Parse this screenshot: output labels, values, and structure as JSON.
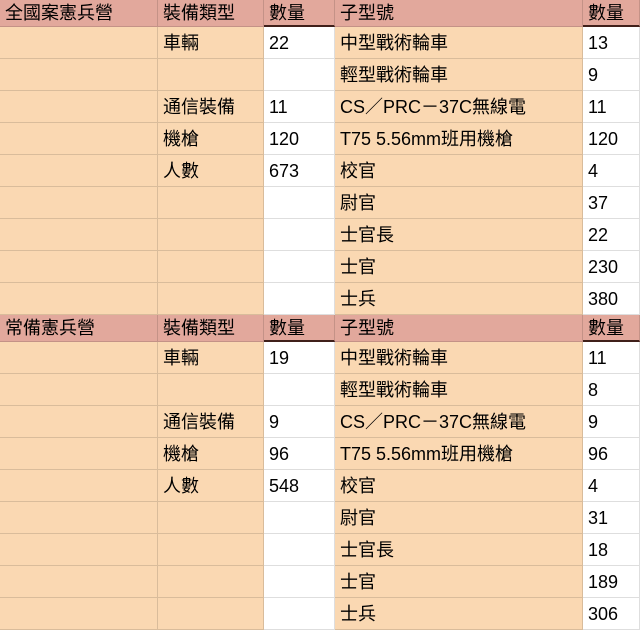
{
  "colors": {
    "header_bg": "#e2a89c",
    "cell_bg": "#fad8b2",
    "white_bg": "#ffffff",
    "grid_line": "rgba(0,0,0,0.13)",
    "qty_header_border": "#40201a",
    "text": "#000000"
  },
  "sections": [
    {
      "header": {
        "title": "全國案憲兵營",
        "equip_type": "裝備類型",
        "qty": "數量",
        "sub_model": "子型號",
        "sub_qty": "數量"
      },
      "rows": [
        {
          "category": "",
          "equip_type": "車輛",
          "qty": "22",
          "sub_model": "中型戰術輪車",
          "sub_qty": "13"
        },
        {
          "category": "",
          "equip_type": "",
          "qty": "",
          "sub_model": "輕型戰術輪車",
          "sub_qty": "9"
        },
        {
          "category": "",
          "equip_type": "通信裝備",
          "qty": "11",
          "sub_model": "CS／PRC－37C無線電",
          "sub_qty": "11"
        },
        {
          "category": "",
          "equip_type": "機槍",
          "qty": "120",
          "sub_model": "T75 5.56mm班用機槍",
          "sub_qty": "120"
        },
        {
          "category": "",
          "equip_type": "人數",
          "qty": "673",
          "sub_model": "校官",
          "sub_qty": "4"
        },
        {
          "category": "",
          "equip_type": "",
          "qty": "",
          "sub_model": "尉官",
          "sub_qty": "37"
        },
        {
          "category": "",
          "equip_type": "",
          "qty": "",
          "sub_model": "士官長",
          "sub_qty": "22"
        },
        {
          "category": "",
          "equip_type": "",
          "qty": "",
          "sub_model": "士官",
          "sub_qty": "230"
        },
        {
          "category": "",
          "equip_type": "",
          "qty": "",
          "sub_model": "士兵",
          "sub_qty": "380"
        }
      ]
    },
    {
      "header": {
        "title": "常備憲兵營",
        "equip_type": "裝備類型",
        "qty": "數量",
        "sub_model": "子型號",
        "sub_qty": "數量"
      },
      "rows": [
        {
          "category": "",
          "equip_type": "車輛",
          "qty": "19",
          "sub_model": "中型戰術輪車",
          "sub_qty": "11"
        },
        {
          "category": "",
          "equip_type": "",
          "qty": "",
          "sub_model": "輕型戰術輪車",
          "sub_qty": "8"
        },
        {
          "category": "",
          "equip_type": "通信裝備",
          "qty": "9",
          "sub_model": "CS／PRC－37C無線電",
          "sub_qty": "9"
        },
        {
          "category": "",
          "equip_type": "機槍",
          "qty": "96",
          "sub_model": "T75 5.56mm班用機槍",
          "sub_qty": "96"
        },
        {
          "category": "",
          "equip_type": "人數",
          "qty": "548",
          "sub_model": "校官",
          "sub_qty": "4"
        },
        {
          "category": "",
          "equip_type": "",
          "qty": "",
          "sub_model": "尉官",
          "sub_qty": "31"
        },
        {
          "category": "",
          "equip_type": "",
          "qty": "",
          "sub_model": "士官長",
          "sub_qty": "18"
        },
        {
          "category": "",
          "equip_type": "",
          "qty": "",
          "sub_model": "士官",
          "sub_qty": "189"
        },
        {
          "category": "",
          "equip_type": "",
          "qty": "",
          "sub_model": "士兵",
          "sub_qty": "306"
        }
      ]
    }
  ]
}
